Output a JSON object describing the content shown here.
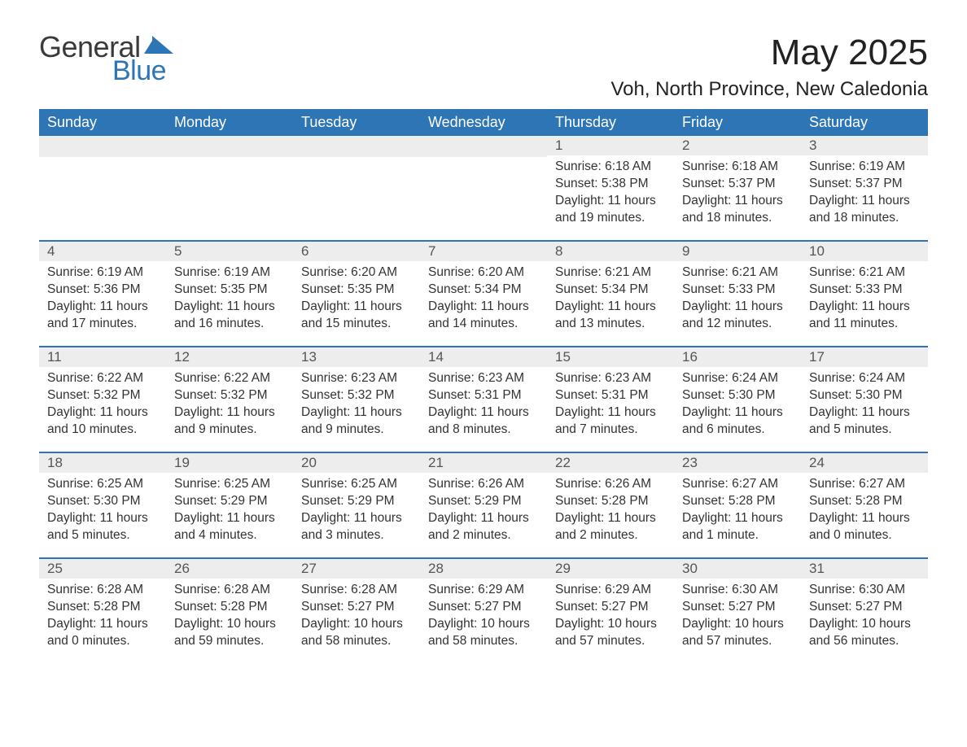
{
  "logo": {
    "line1": "General",
    "line2": "Blue",
    "color1": "#3a3a3a",
    "color2": "#2e75b6"
  },
  "title": "May 2025",
  "location": "Voh, North Province, New Caledonia",
  "headerBg": "#2e75b6",
  "headerText": "#ffffff",
  "dayNumBg": "#ededed",
  "rowBorder": "#2e75b6",
  "dayLabels": [
    "Sunday",
    "Monday",
    "Tuesday",
    "Wednesday",
    "Thursday",
    "Friday",
    "Saturday"
  ],
  "weeks": [
    [
      {
        "n": "",
        "sunrise": "",
        "sunset": "",
        "daylight": ""
      },
      {
        "n": "",
        "sunrise": "",
        "sunset": "",
        "daylight": ""
      },
      {
        "n": "",
        "sunrise": "",
        "sunset": "",
        "daylight": ""
      },
      {
        "n": "",
        "sunrise": "",
        "sunset": "",
        "daylight": ""
      },
      {
        "n": "1",
        "sunrise": "Sunrise: 6:18 AM",
        "sunset": "Sunset: 5:38 PM",
        "daylight": "Daylight: 11 hours and 19 minutes."
      },
      {
        "n": "2",
        "sunrise": "Sunrise: 6:18 AM",
        "sunset": "Sunset: 5:37 PM",
        "daylight": "Daylight: 11 hours and 18 minutes."
      },
      {
        "n": "3",
        "sunrise": "Sunrise: 6:19 AM",
        "sunset": "Sunset: 5:37 PM",
        "daylight": "Daylight: 11 hours and 18 minutes."
      }
    ],
    [
      {
        "n": "4",
        "sunrise": "Sunrise: 6:19 AM",
        "sunset": "Sunset: 5:36 PM",
        "daylight": "Daylight: 11 hours and 17 minutes."
      },
      {
        "n": "5",
        "sunrise": "Sunrise: 6:19 AM",
        "sunset": "Sunset: 5:35 PM",
        "daylight": "Daylight: 11 hours and 16 minutes."
      },
      {
        "n": "6",
        "sunrise": "Sunrise: 6:20 AM",
        "sunset": "Sunset: 5:35 PM",
        "daylight": "Daylight: 11 hours and 15 minutes."
      },
      {
        "n": "7",
        "sunrise": "Sunrise: 6:20 AM",
        "sunset": "Sunset: 5:34 PM",
        "daylight": "Daylight: 11 hours and 14 minutes."
      },
      {
        "n": "8",
        "sunrise": "Sunrise: 6:21 AM",
        "sunset": "Sunset: 5:34 PM",
        "daylight": "Daylight: 11 hours and 13 minutes."
      },
      {
        "n": "9",
        "sunrise": "Sunrise: 6:21 AM",
        "sunset": "Sunset: 5:33 PM",
        "daylight": "Daylight: 11 hours and 12 minutes."
      },
      {
        "n": "10",
        "sunrise": "Sunrise: 6:21 AM",
        "sunset": "Sunset: 5:33 PM",
        "daylight": "Daylight: 11 hours and 11 minutes."
      }
    ],
    [
      {
        "n": "11",
        "sunrise": "Sunrise: 6:22 AM",
        "sunset": "Sunset: 5:32 PM",
        "daylight": "Daylight: 11 hours and 10 minutes."
      },
      {
        "n": "12",
        "sunrise": "Sunrise: 6:22 AM",
        "sunset": "Sunset: 5:32 PM",
        "daylight": "Daylight: 11 hours and 9 minutes."
      },
      {
        "n": "13",
        "sunrise": "Sunrise: 6:23 AM",
        "sunset": "Sunset: 5:32 PM",
        "daylight": "Daylight: 11 hours and 9 minutes."
      },
      {
        "n": "14",
        "sunrise": "Sunrise: 6:23 AM",
        "sunset": "Sunset: 5:31 PM",
        "daylight": "Daylight: 11 hours and 8 minutes."
      },
      {
        "n": "15",
        "sunrise": "Sunrise: 6:23 AM",
        "sunset": "Sunset: 5:31 PM",
        "daylight": "Daylight: 11 hours and 7 minutes."
      },
      {
        "n": "16",
        "sunrise": "Sunrise: 6:24 AM",
        "sunset": "Sunset: 5:30 PM",
        "daylight": "Daylight: 11 hours and 6 minutes."
      },
      {
        "n": "17",
        "sunrise": "Sunrise: 6:24 AM",
        "sunset": "Sunset: 5:30 PM",
        "daylight": "Daylight: 11 hours and 5 minutes."
      }
    ],
    [
      {
        "n": "18",
        "sunrise": "Sunrise: 6:25 AM",
        "sunset": "Sunset: 5:30 PM",
        "daylight": "Daylight: 11 hours and 5 minutes."
      },
      {
        "n": "19",
        "sunrise": "Sunrise: 6:25 AM",
        "sunset": "Sunset: 5:29 PM",
        "daylight": "Daylight: 11 hours and 4 minutes."
      },
      {
        "n": "20",
        "sunrise": "Sunrise: 6:25 AM",
        "sunset": "Sunset: 5:29 PM",
        "daylight": "Daylight: 11 hours and 3 minutes."
      },
      {
        "n": "21",
        "sunrise": "Sunrise: 6:26 AM",
        "sunset": "Sunset: 5:29 PM",
        "daylight": "Daylight: 11 hours and 2 minutes."
      },
      {
        "n": "22",
        "sunrise": "Sunrise: 6:26 AM",
        "sunset": "Sunset: 5:28 PM",
        "daylight": "Daylight: 11 hours and 2 minutes."
      },
      {
        "n": "23",
        "sunrise": "Sunrise: 6:27 AM",
        "sunset": "Sunset: 5:28 PM",
        "daylight": "Daylight: 11 hours and 1 minute."
      },
      {
        "n": "24",
        "sunrise": "Sunrise: 6:27 AM",
        "sunset": "Sunset: 5:28 PM",
        "daylight": "Daylight: 11 hours and 0 minutes."
      }
    ],
    [
      {
        "n": "25",
        "sunrise": "Sunrise: 6:28 AM",
        "sunset": "Sunset: 5:28 PM",
        "daylight": "Daylight: 11 hours and 0 minutes."
      },
      {
        "n": "26",
        "sunrise": "Sunrise: 6:28 AM",
        "sunset": "Sunset: 5:28 PM",
        "daylight": "Daylight: 10 hours and 59 minutes."
      },
      {
        "n": "27",
        "sunrise": "Sunrise: 6:28 AM",
        "sunset": "Sunset: 5:27 PM",
        "daylight": "Daylight: 10 hours and 58 minutes."
      },
      {
        "n": "28",
        "sunrise": "Sunrise: 6:29 AM",
        "sunset": "Sunset: 5:27 PM",
        "daylight": "Daylight: 10 hours and 58 minutes."
      },
      {
        "n": "29",
        "sunrise": "Sunrise: 6:29 AM",
        "sunset": "Sunset: 5:27 PM",
        "daylight": "Daylight: 10 hours and 57 minutes."
      },
      {
        "n": "30",
        "sunrise": "Sunrise: 6:30 AM",
        "sunset": "Sunset: 5:27 PM",
        "daylight": "Daylight: 10 hours and 57 minutes."
      },
      {
        "n": "31",
        "sunrise": "Sunrise: 6:30 AM",
        "sunset": "Sunset: 5:27 PM",
        "daylight": "Daylight: 10 hours and 56 minutes."
      }
    ]
  ]
}
